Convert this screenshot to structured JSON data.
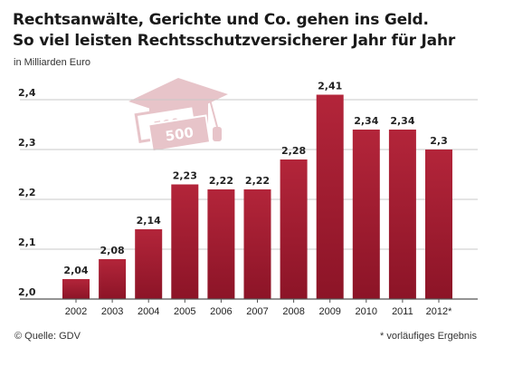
{
  "header": {
    "title_line_1": "Rechtsanwälte, Gerichte und Co. gehen ins Geld.",
    "title_line_2": "So viel leisten Rechtsschutzversicherer Jahr für Jahr",
    "unit_label": "in Milliarden Euro"
  },
  "footer": {
    "source": "© Quelle: GDV",
    "footnote": "* vorläufiges Ergebnis"
  },
  "illustration": {
    "icon": "graduation-cap-with-banknotes",
    "banknote_text": "500"
  },
  "chart_data": {
    "type": "bar",
    "title": "Rechtsanwälte, Gerichte und Co. gehen ins Geld. So viel leisten Rechtsschutzversicherer Jahr für Jahr",
    "ylabel": "in Milliarden Euro",
    "xlabel": "",
    "categories": [
      "2002",
      "2003",
      "2004",
      "2005",
      "2006",
      "2007",
      "2008",
      "2009",
      "2010",
      "2011",
      "2012*"
    ],
    "values": [
      2.04,
      2.08,
      2.14,
      2.23,
      2.22,
      2.22,
      2.28,
      2.41,
      2.34,
      2.34,
      2.3
    ],
    "value_labels": [
      "2,04",
      "2,08",
      "2,14",
      "2,23",
      "2,22",
      "2,22",
      "2,28",
      "2,41",
      "2,34",
      "2,34",
      "2,3"
    ],
    "ylim": [
      2.0,
      2.42
    ],
    "yticks": [
      2.0,
      2.1,
      2.2,
      2.3,
      2.4
    ],
    "ytick_labels": [
      "2,0",
      "2,1",
      "2,2",
      "2,3",
      "2,4"
    ],
    "grid": true,
    "colors": {
      "bar_top": "#b3253a",
      "bar_bottom": "#8c1427",
      "grid": "#c8c8c8",
      "axis": "#555555",
      "illustration": "#e7c4c9"
    }
  }
}
